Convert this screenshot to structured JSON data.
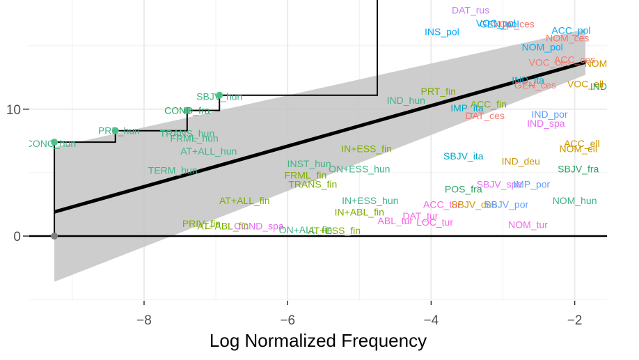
{
  "chart_data": {
    "type": "scatter",
    "title": "",
    "xlabel": "Log Normalized Frequency",
    "ylabel": "",
    "xlim": [
      -9.6,
      -1.55
    ],
    "ylim": [
      -5.1,
      18.6
    ],
    "x_ticks": [
      -8,
      -6,
      -4,
      -2
    ],
    "x_tick_labels": [
      "−8",
      "−6",
      "−4",
      "−2"
    ],
    "y_ticks": [
      0,
      10
    ],
    "y_tick_labels": [
      "0",
      "10"
    ],
    "grid": true,
    "colors": {
      "panel": "#ffffff",
      "grid_major": "#ebebeb",
      "grid_minor": "#f3f3f3",
      "line": "#000000",
      "ribbon": "#c4c4c4",
      "point_hun": "#4fc38a",
      "point_zero": "#7f7f7f"
    },
    "regression": {
      "x": [
        -9.25,
        -1.85
      ],
      "y": [
        1.9,
        13.7
      ],
      "band_lower": [
        -3.6,
        12.7
      ],
      "band_upper": [
        7.0,
        16.3
      ]
    },
    "horizontal_line": {
      "y": 0
    },
    "step_path": {
      "x": [
        -9.25,
        -9.25,
        -8.4,
        -8.4,
        -7.4,
        -7.4,
        -6.95,
        -6.95,
        -4.75,
        -4.75
      ],
      "y": [
        0,
        7.4,
        7.4,
        8.3,
        8.3,
        9.9,
        9.9,
        11.1,
        11.1,
        19.2
      ]
    },
    "points": [
      {
        "x": -9.25,
        "y": 0,
        "color": "#7f7f7f"
      },
      {
        "x": -9.25,
        "y": 7.4,
        "color": "#4fc38a"
      },
      {
        "x": -8.4,
        "y": 8.3,
        "color": "#4fc38a"
      },
      {
        "x": -7.4,
        "y": 9.9,
        "color": "#4fc38a"
      },
      {
        "x": -6.95,
        "y": 11.1,
        "color": "#4fc38a"
      }
    ],
    "labels": [
      {
        "text": "CONC_hun",
        "x": -9.3,
        "y": 7.3,
        "color": "#3fb586"
      },
      {
        "text": "PRP_hun",
        "x": -8.35,
        "y": 8.3,
        "color": "#3fb586"
      },
      {
        "text": "COND_fra",
        "x": -7.4,
        "y": 9.9,
        "color": "#2ca25f"
      },
      {
        "text": "SBJV_hun",
        "x": -6.95,
        "y": 11.0,
        "color": "#3fb586"
      },
      {
        "text": "TRANS_hun",
        "x": -7.4,
        "y": 8.1,
        "color": "#3fb586"
      },
      {
        "text": "FRML_hun",
        "x": -7.3,
        "y": 7.7,
        "color": "#3fb586"
      },
      {
        "text": "AT+ALL_hun",
        "x": -7.1,
        "y": 6.7,
        "color": "#3fb586"
      },
      {
        "text": "TERM_hun",
        "x": -7.6,
        "y": 5.2,
        "color": "#3fb586"
      },
      {
        "text": "INST_hun",
        "x": -5.7,
        "y": 5.7,
        "color": "#3fb586"
      },
      {
        "text": "ON+ESS_hun",
        "x": -5.0,
        "y": 5.3,
        "color": "#3fb586"
      },
      {
        "text": "FRML_fin",
        "x": -5.75,
        "y": 4.8,
        "color": "#7cae00"
      },
      {
        "text": "TRANS_fin",
        "x": -5.65,
        "y": 4.1,
        "color": "#7cae00"
      },
      {
        "text": "IN+ESS_fin",
        "x": -4.9,
        "y": 6.9,
        "color": "#7cae00"
      },
      {
        "text": "AT+ALL_fin",
        "x": -6.6,
        "y": 2.8,
        "color": "#7cae00"
      },
      {
        "text": "IN+ESS_hun",
        "x": -4.85,
        "y": 2.8,
        "color": "#3fb586"
      },
      {
        "text": "IN+ABL_fin",
        "x": -5.0,
        "y": 1.9,
        "color": "#7cae00"
      },
      {
        "text": "PRIV_fin",
        "x": -7.2,
        "y": 1.0,
        "color": "#7cae00"
      },
      {
        "text": "AT+ABL_fin",
        "x": -6.9,
        "y": 0.8,
        "color": "#7cae00"
      },
      {
        "text": "COND_spa",
        "x": -6.4,
        "y": 0.8,
        "color": "#e76bf3"
      },
      {
        "text": "ON+ALL_fin",
        "x": -5.75,
        "y": 0.5,
        "color": "#3fb586"
      },
      {
        "text": "AT+ESS_fin",
        "x": -5.35,
        "y": 0.45,
        "color": "#7cae00"
      },
      {
        "text": "ABL_tur",
        "x": -4.5,
        "y": 1.2,
        "color": "#f564e3"
      },
      {
        "text": "DAT_tur",
        "x": -4.15,
        "y": 1.6,
        "color": "#f564e3"
      },
      {
        "text": "LOC_tur",
        "x": -3.95,
        "y": 1.1,
        "color": "#f564e3"
      },
      {
        "text": "PRT_fin",
        "x": -3.9,
        "y": 11.4,
        "color": "#7cae00"
      },
      {
        "text": "IND_hun",
        "x": -4.35,
        "y": 10.7,
        "color": "#3fb586"
      },
      {
        "text": "ACC_fin",
        "x": -3.2,
        "y": 10.4,
        "color": "#7cae00"
      },
      {
        "text": "IMP_ita",
        "x": -3.5,
        "y": 10.1,
        "color": "#00a9c8"
      },
      {
        "text": "DAT_ces",
        "x": -3.25,
        "y": 9.5,
        "color": "#f8766d"
      },
      {
        "text": "IND_por",
        "x": -2.35,
        "y": 9.6,
        "color": "#619cff"
      },
      {
        "text": "IND_spa",
        "x": -2.4,
        "y": 8.9,
        "color": "#e76bf3"
      },
      {
        "text": "SBJV_ita",
        "x": -3.55,
        "y": 6.3,
        "color": "#00a9c8"
      },
      {
        "text": "IND_deu",
        "x": -2.75,
        "y": 5.9,
        "color": "#cd9600"
      },
      {
        "text": "SBJV_fra",
        "x": -1.95,
        "y": 5.3,
        "color": "#2ca25f"
      },
      {
        "text": "ACC_ell",
        "x": -1.9,
        "y": 7.3,
        "color": "#cd9600"
      },
      {
        "text": "NOM_ell",
        "x": -1.95,
        "y": 6.9,
        "color": "#cd9600"
      },
      {
        "text": "POS_fra",
        "x": -3.55,
        "y": 3.7,
        "color": "#2ca25f"
      },
      {
        "text": "SBJV_spa",
        "x": -3.05,
        "y": 4.1,
        "color": "#e76bf3"
      },
      {
        "text": "IMP_por",
        "x": -2.6,
        "y": 4.1,
        "color": "#619cff"
      },
      {
        "text": "ACC_tur",
        "x": -3.85,
        "y": 2.5,
        "color": "#f564e3"
      },
      {
        "text": "SBJV_deu",
        "x": -3.4,
        "y": 2.5,
        "color": "#cd9600"
      },
      {
        "text": "SBJV_por",
        "x": -2.95,
        "y": 2.5,
        "color": "#619cff"
      },
      {
        "text": "NOM_hun",
        "x": -2.0,
        "y": 2.8,
        "color": "#3fb586"
      },
      {
        "text": "NOM_tur",
        "x": -2.65,
        "y": 0.9,
        "color": "#f564e3"
      },
      {
        "text": "DAT_rus",
        "x": -3.45,
        "y": 17.8,
        "color": "#c77cff"
      },
      {
        "text": "VOC_pol",
        "x": -3.1,
        "y": 16.8,
        "color": "#00a9ff"
      },
      {
        "text": "GEN_pol",
        "x": -3.05,
        "y": 16.7,
        "color": "#00a9ff"
      },
      {
        "text": "VOC_ces",
        "x": -2.85,
        "y": 16.7,
        "color": "#f8766d"
      },
      {
        "text": "INS_pol",
        "x": -3.85,
        "y": 16.1,
        "color": "#00a9ff"
      },
      {
        "text": "ACC_pol",
        "x": -2.05,
        "y": 16.2,
        "color": "#00a9ff"
      },
      {
        "text": "NOM_ces",
        "x": -2.1,
        "y": 15.6,
        "color": "#f8766d"
      },
      {
        "text": "NOM_pol",
        "x": -2.45,
        "y": 14.9,
        "color": "#00a9ff"
      },
      {
        "text": "VOC_ces",
        "x": -2.35,
        "y": 13.7,
        "color": "#f8766d"
      },
      {
        "text": "ACC_ces",
        "x": -2.0,
        "y": 13.9,
        "color": "#f8766d"
      },
      {
        "text": "NOM_ell",
        "x": -1.6,
        "y": 13.6,
        "color": "#cd9600"
      },
      {
        "text": "IND_ita",
        "x": -2.65,
        "y": 12.3,
        "color": "#00a9c8"
      },
      {
        "text": "GEN_ces",
        "x": -2.55,
        "y": 11.9,
        "color": "#f8766d"
      },
      {
        "text": "VOC_ell",
        "x": -1.85,
        "y": 12.0,
        "color": "#cd9600"
      },
      {
        "text": "IND_fra",
        "x": -1.55,
        "y": 11.8,
        "color": "#2ca25f"
      }
    ]
  }
}
